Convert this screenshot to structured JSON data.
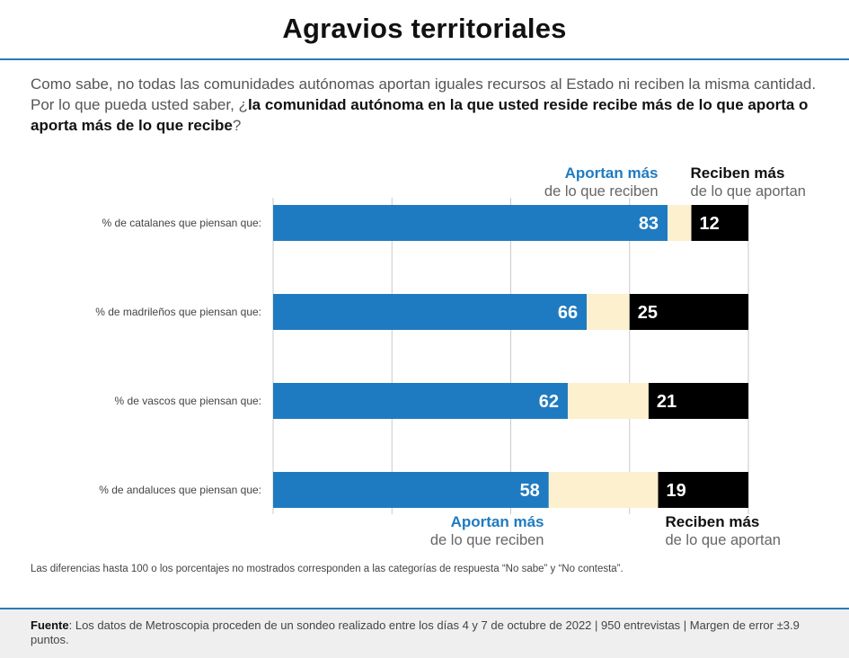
{
  "title": "Agravios territoriales",
  "question": {
    "part1": "Como sabe, no todas las comunidades autónomas aportan iguales recursos al Estado ni reciben la misma cantidad. Por lo que pueda usted saber, ¿",
    "bold": "la comunidad autónoma en la que usted reside recibe más de lo que aporta o aporta más de lo que recibe",
    "part2": "?"
  },
  "legend": {
    "aportan_bold": "Aportan más",
    "aportan_sub": "de lo que reciben",
    "reciben_bold": "Reciben más",
    "reciben_sub": "de lo que aportan"
  },
  "note": "Las diferencias hasta 100 o los porcentajes no mostrados corresponden a las categorías de respuesta “No sabe” y “No contesta”.",
  "footer": {
    "label": "Fuente",
    "text": ": Los datos de Metroscopia proceden de un sondeo realizado entre los días 4 y 7 de octubre de 2022 | 950 entrevistas | Margen de error ±3.9 puntos."
  },
  "colors": {
    "aportan": "#1f7bc1",
    "reciben": "#000000",
    "rest": "#fcf0cf",
    "grid": "#c9c9c9",
    "accent": "#2a7ab6"
  },
  "chart_data": {
    "type": "bar",
    "orientation": "horizontal",
    "stacked": true,
    "categories": [
      "% de catalanes que piensan que:",
      "% de madrileños que piensan que:",
      "% de vascos que piensan que:",
      "% de andaluces que piensan que:"
    ],
    "series": [
      {
        "name": "Aportan más de lo que reciben",
        "values": [
          83,
          66,
          62,
          58
        ]
      },
      {
        "values": [
          5,
          9,
          17,
          23
        ]
      },
      {
        "name": "Reciben más de lo que aportan",
        "values": [
          12,
          25,
          21,
          19
        ]
      }
    ],
    "xlim": [
      0,
      100
    ],
    "grid": true
  }
}
